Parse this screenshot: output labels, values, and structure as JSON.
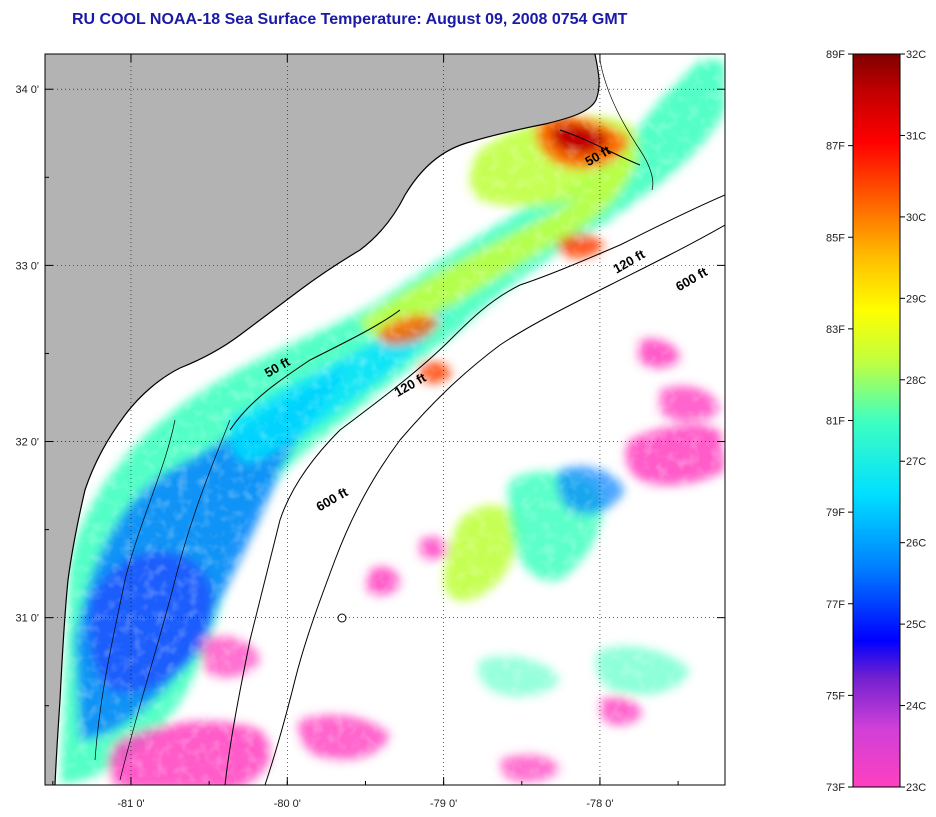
{
  "title": "RU COOL  NOAA-18  Sea Surface Temperature:  August 09, 2008 0754 GMT",
  "map": {
    "lon_range": [
      -81.55,
      -77.2
    ],
    "lat_range": [
      30.05,
      34.2
    ],
    "lon_ticks": [
      {
        "value": -81,
        "label": "-81 0'"
      },
      {
        "value": -80,
        "label": "-80 0'"
      },
      {
        "value": -79,
        "label": "-79 0'"
      },
      {
        "value": -78,
        "label": "-78 0'"
      }
    ],
    "lat_ticks": [
      {
        "value": 34,
        "label": "34 0'"
      },
      {
        "value": 33,
        "label": "33 0'"
      },
      {
        "value": 32,
        "label": "32 0'"
      },
      {
        "value": 31,
        "label": "31 0'"
      }
    ],
    "grid": "dotted",
    "land_color": "#b3b3b3",
    "no_data_color": "#ffffff",
    "contours": [
      {
        "label": "50 ft",
        "lon": -78.0,
        "lat": 33.6
      },
      {
        "label": "120 ft",
        "lon": -77.8,
        "lat": 33.0
      },
      {
        "label": "600 ft",
        "lon": -77.4,
        "lat": 32.9
      },
      {
        "label": "50 ft",
        "lon": -80.05,
        "lat": 32.4
      },
      {
        "label": "120 ft",
        "lon": -79.2,
        "lat": 32.3
      },
      {
        "label": "600 ft",
        "lon": -79.7,
        "lat": 31.65
      }
    ]
  },
  "colorbar": {
    "colors": [
      "#ff40c0",
      "#c040e0",
      "#6020d0",
      "#0000ff",
      "#0080ff",
      "#00e0ff",
      "#40ffc0",
      "#c0ff40",
      "#ffff00",
      "#ffc000",
      "#ff6000",
      "#ff0000",
      "#c00000",
      "#800000"
    ],
    "fahrenheit_labels": [
      "73F",
      "75F",
      "77F",
      "79F",
      "81F",
      "83F",
      "85F",
      "87F",
      "89F"
    ],
    "celsius_labels": [
      "23C",
      "24C",
      "25C",
      "26C",
      "27C",
      "28C",
      "29C",
      "30C",
      "31C",
      "32C"
    ]
  }
}
